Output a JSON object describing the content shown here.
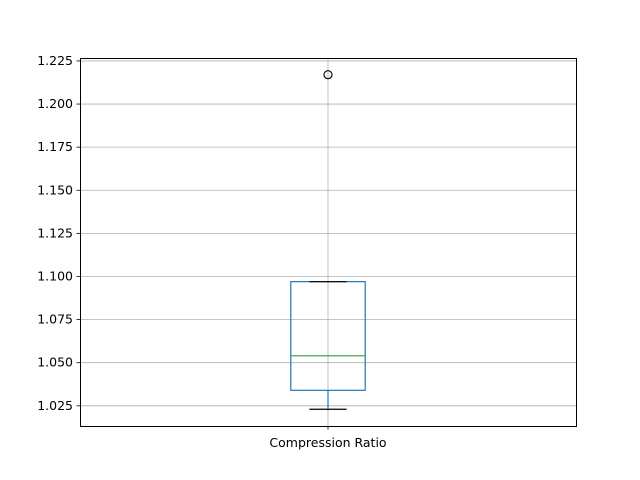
{
  "chart_data": {
    "type": "box",
    "categories": [
      "Compression Ratio"
    ],
    "series": [
      {
        "whisker_low": 1.023,
        "q1": 1.034,
        "median": 1.054,
        "q3": 1.097,
        "whisker_high": 1.097,
        "outliers": [
          1.217
        ]
      }
    ],
    "yticks": [
      "1.025",
      "1.050",
      "1.075",
      "1.100",
      "1.125",
      "1.150",
      "1.175",
      "1.200",
      "1.225"
    ],
    "ylim": [
      1.0133,
      1.2267
    ],
    "grid": true,
    "colors": {
      "box": "#1f77b4",
      "median": "#2ca02c",
      "whisker": "#1f77b4",
      "cap": "#000000",
      "grid": "#b0b0b0"
    }
  }
}
